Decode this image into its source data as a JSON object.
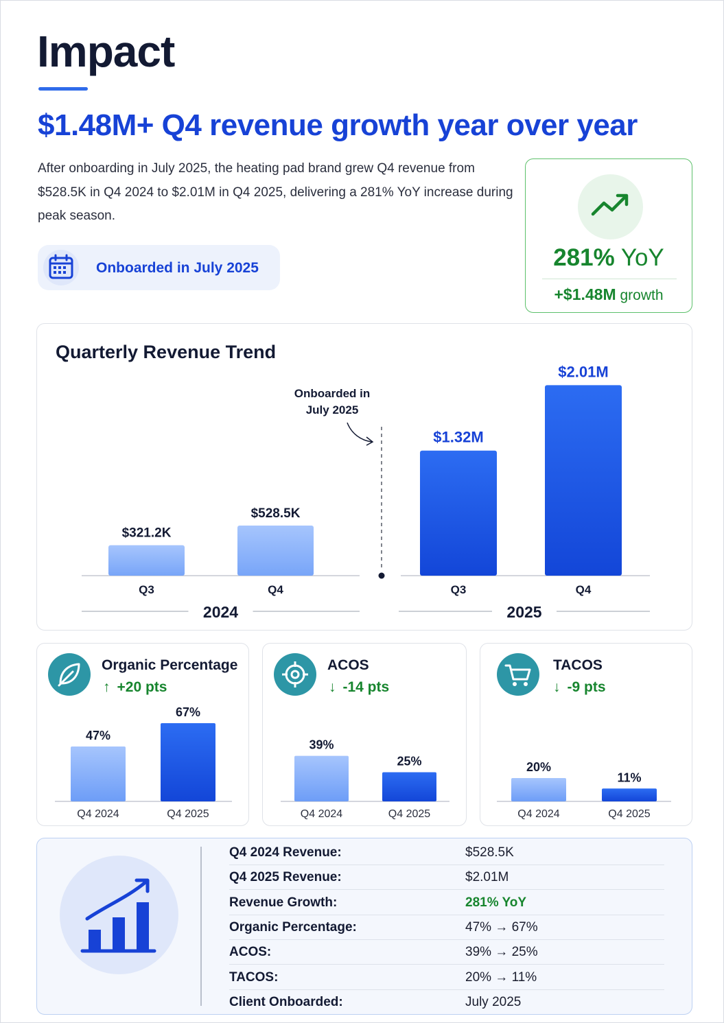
{
  "header": {
    "title": "Impact",
    "headline": "$1.48M+ Q4 revenue growth year over year",
    "intro": "After onboarding in July 2025, the heating pad brand grew Q4 revenue from $528.5K in Q4 2024 to $2.01M in Q4 2025, delivering a 281% YoY increase during peak season.",
    "onboard_label": "Onboarded in July 2025"
  },
  "yoy_card": {
    "value": "281%",
    "unit": "YoY",
    "growth_value": "+$1.48M",
    "growth_word": "growth",
    "icon": "trending-up-icon",
    "color": "#17852e"
  },
  "colors": {
    "accent_blue": "#1742d6",
    "bar_2024": "#8db3fb",
    "bar_2025": "#1a5be9",
    "green": "#17852e",
    "teal_icon": "#2d96a6"
  },
  "chart_data": [
    {
      "type": "bar",
      "title": "Quarterly Revenue Trend",
      "groups": [
        {
          "label": "2024",
          "categories": [
            "Q3",
            "Q4"
          ],
          "values": [
            321.2,
            528.5
          ],
          "value_labels": [
            "$321.2K",
            "$528.5K"
          ]
        },
        {
          "label": "2025",
          "categories": [
            "Q3",
            "Q4"
          ],
          "values": [
            1320,
            2010
          ],
          "value_labels": [
            "$1.32M",
            "$2.01M"
          ]
        }
      ],
      "unit": "$K",
      "annotation": "Onboarded in July 2025",
      "ylim": [
        0,
        2100
      ],
      "grid": false
    },
    {
      "type": "bar",
      "title": "Organic Percentage",
      "delta": "+20 pts",
      "delta_direction": "up",
      "icon": "leaf-icon",
      "categories": [
        "Q4 2024",
        "Q4 2025"
      ],
      "values": [
        47,
        67
      ],
      "value_labels": [
        "47%",
        "67%"
      ],
      "ylim": [
        0,
        70
      ]
    },
    {
      "type": "bar",
      "title": "ACOS",
      "delta": "-14 pts",
      "delta_direction": "down",
      "icon": "target-icon",
      "categories": [
        "Q4 2024",
        "Q4 2025"
      ],
      "values": [
        39,
        25
      ],
      "value_labels": [
        "39%",
        "25%"
      ],
      "ylim": [
        0,
        70
      ]
    },
    {
      "type": "bar",
      "title": "TACOS",
      "delta": "-9 pts",
      "delta_direction": "down",
      "icon": "cart-icon",
      "categories": [
        "Q4 2024",
        "Q4 2025"
      ],
      "values": [
        20,
        11
      ],
      "value_labels": [
        "20%",
        "11%"
      ],
      "ylim": [
        0,
        70
      ]
    }
  ],
  "summary": {
    "icon": "bar-chart-growth-icon",
    "rows": [
      {
        "label": "Q4 2024 Revenue:",
        "value": "$528.5K",
        "highlight": false
      },
      {
        "label": "Q4 2025 Revenue:",
        "value": "$2.01M",
        "highlight": false
      },
      {
        "label": "Revenue Growth:",
        "value": "281% YoY",
        "highlight": true
      },
      {
        "label": "Organic Percentage:",
        "value": "47% → 67%",
        "highlight": false
      },
      {
        "label": "ACOS:",
        "value": "39% → 25%",
        "highlight": false
      },
      {
        "label": "TACOS:",
        "value": "20% → 11%",
        "highlight": false
      },
      {
        "label": "Client Onboarded:",
        "value": "July 2025",
        "highlight": false
      }
    ]
  }
}
